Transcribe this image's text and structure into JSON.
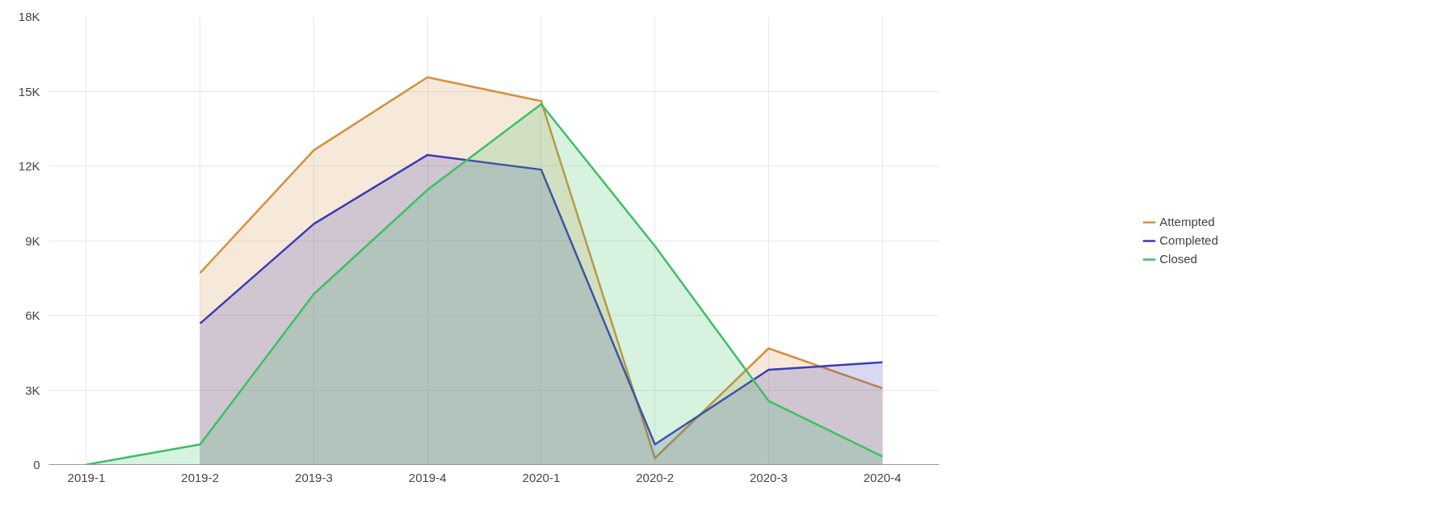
{
  "chart_data": {
    "type": "area",
    "categories": [
      "2019-1",
      "2019-2",
      "2019-3",
      "2019-4",
      "2020-1",
      "2020-2",
      "2020-3",
      "2020-4"
    ],
    "series": [
      {
        "name": "Attempted",
        "color": "#d4913f",
        "values": [
          null,
          7700,
          12630,
          15560,
          14600,
          260,
          4670,
          3070
        ]
      },
      {
        "name": "Completed",
        "color": "#3b3bb5",
        "values": [
          null,
          5670,
          9670,
          12440,
          11850,
          810,
          3810,
          4110
        ]
      },
      {
        "name": "Closed",
        "color": "#3dbf66",
        "values": [
          0,
          810,
          6850,
          11040,
          14480,
          8780,
          2560,
          330
        ]
      }
    ],
    "ylim": [
      0,
      18000
    ],
    "yticks": [
      {
        "value": 0,
        "label": "0"
      },
      {
        "value": 3000,
        "label": "3K"
      },
      {
        "value": 6000,
        "label": "6K"
      },
      {
        "value": 9000,
        "label": "9K"
      },
      {
        "value": 12000,
        "label": "12K"
      },
      {
        "value": 15000,
        "label": "15K"
      },
      {
        "value": 18000,
        "label": "18K"
      }
    ],
    "grid": true,
    "legend": "right"
  }
}
